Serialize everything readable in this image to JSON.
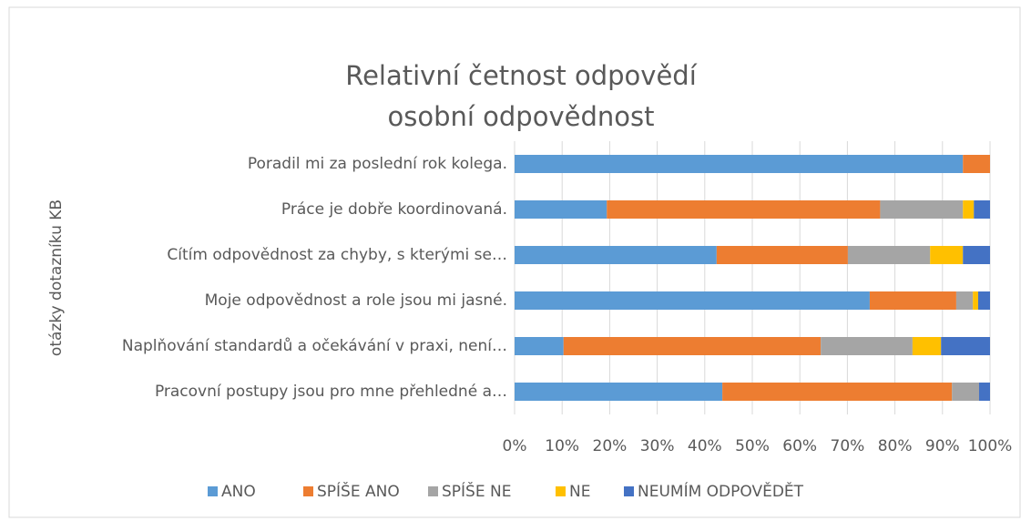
{
  "chart_data": {
    "type": "stacked-bar-horizontal",
    "title": [
      "Relativní četnost odpovědí",
      "osobní odpovědnost"
    ],
    "y_axis_label": "otázky dotazníku KB",
    "categories": [
      "Poradil mi za poslední rok kolega.",
      "Práce je dobře koordinovaná.",
      "Cítím odpovědnost za chyby, s kterými se…",
      "Moje odpovědnost a role jsou mi jasné.",
      "Naplňování standardů a očekávání v praxi, není…",
      "Pracovní postupy jsou pro mne přehledné a…"
    ],
    "series": [
      {
        "name": "ANO",
        "color": "#5b9bd5",
        "values": [
          94.3,
          19.4,
          42.5,
          74.7,
          10.3,
          43.7
        ]
      },
      {
        "name": "SPÍŠE ANO",
        "color": "#ed7d31",
        "values": [
          5.7,
          57.5,
          27.6,
          18.2,
          54.1,
          48.3
        ]
      },
      {
        "name": "SPÍŠE NE",
        "color": "#a5a5a5",
        "values": [
          0,
          17.4,
          17.3,
          3.5,
          19.3,
          5.7
        ]
      },
      {
        "name": "NE",
        "color": "#ffc000",
        "values": [
          0,
          2.3,
          6.9,
          1.1,
          6.0,
          0
        ]
      },
      {
        "name": "NEUMÍM ODPOVĚDĚT",
        "color": "#4472c4",
        "values": [
          0,
          3.4,
          5.7,
          2.5,
          10.3,
          2.3
        ]
      }
    ],
    "xlim": [
      0,
      100
    ],
    "xticks": [
      {
        "value": 0,
        "label": "0%"
      },
      {
        "value": 10,
        "label": "10%"
      },
      {
        "value": 20,
        "label": "20%"
      },
      {
        "value": 30,
        "label": "30%"
      },
      {
        "value": 40,
        "label": "40%"
      },
      {
        "value": 50,
        "label": "50%"
      },
      {
        "value": 60,
        "label": "60%"
      },
      {
        "value": 70,
        "label": "70%"
      },
      {
        "value": 80,
        "label": "80%"
      },
      {
        "value": 90,
        "label": "90%"
      },
      {
        "value": 100,
        "label": "100%"
      }
    ],
    "grid": true,
    "legend": "bottom"
  }
}
